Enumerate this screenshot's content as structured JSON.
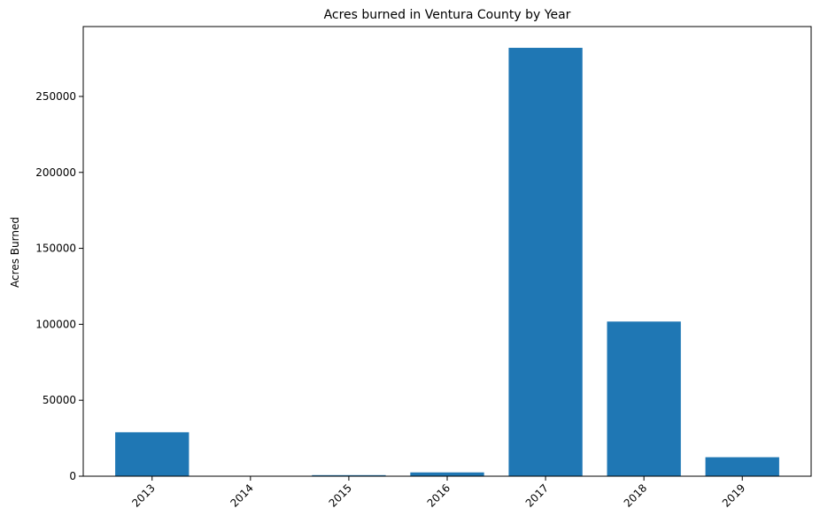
{
  "chart_data": {
    "type": "bar",
    "title": "Acres burned in Ventura County by Year",
    "xlabel": "",
    "ylabel": "Acres Burned",
    "categories": [
      "2013",
      "2014",
      "2015",
      "2016",
      "2017",
      "2018",
      "2019"
    ],
    "values": [
      28900,
      150,
      700,
      2500,
      282000,
      101800,
      12500
    ],
    "ylim": [
      0,
      296000
    ],
    "yticks": [
      0,
      50000,
      100000,
      150000,
      200000,
      250000
    ],
    "ytick_labels": [
      "0",
      "50000",
      "100000",
      "150000",
      "200000",
      "250000"
    ],
    "grid": false,
    "bar_color": "#1f77b4",
    "xtick_rotation_deg": -45
  }
}
